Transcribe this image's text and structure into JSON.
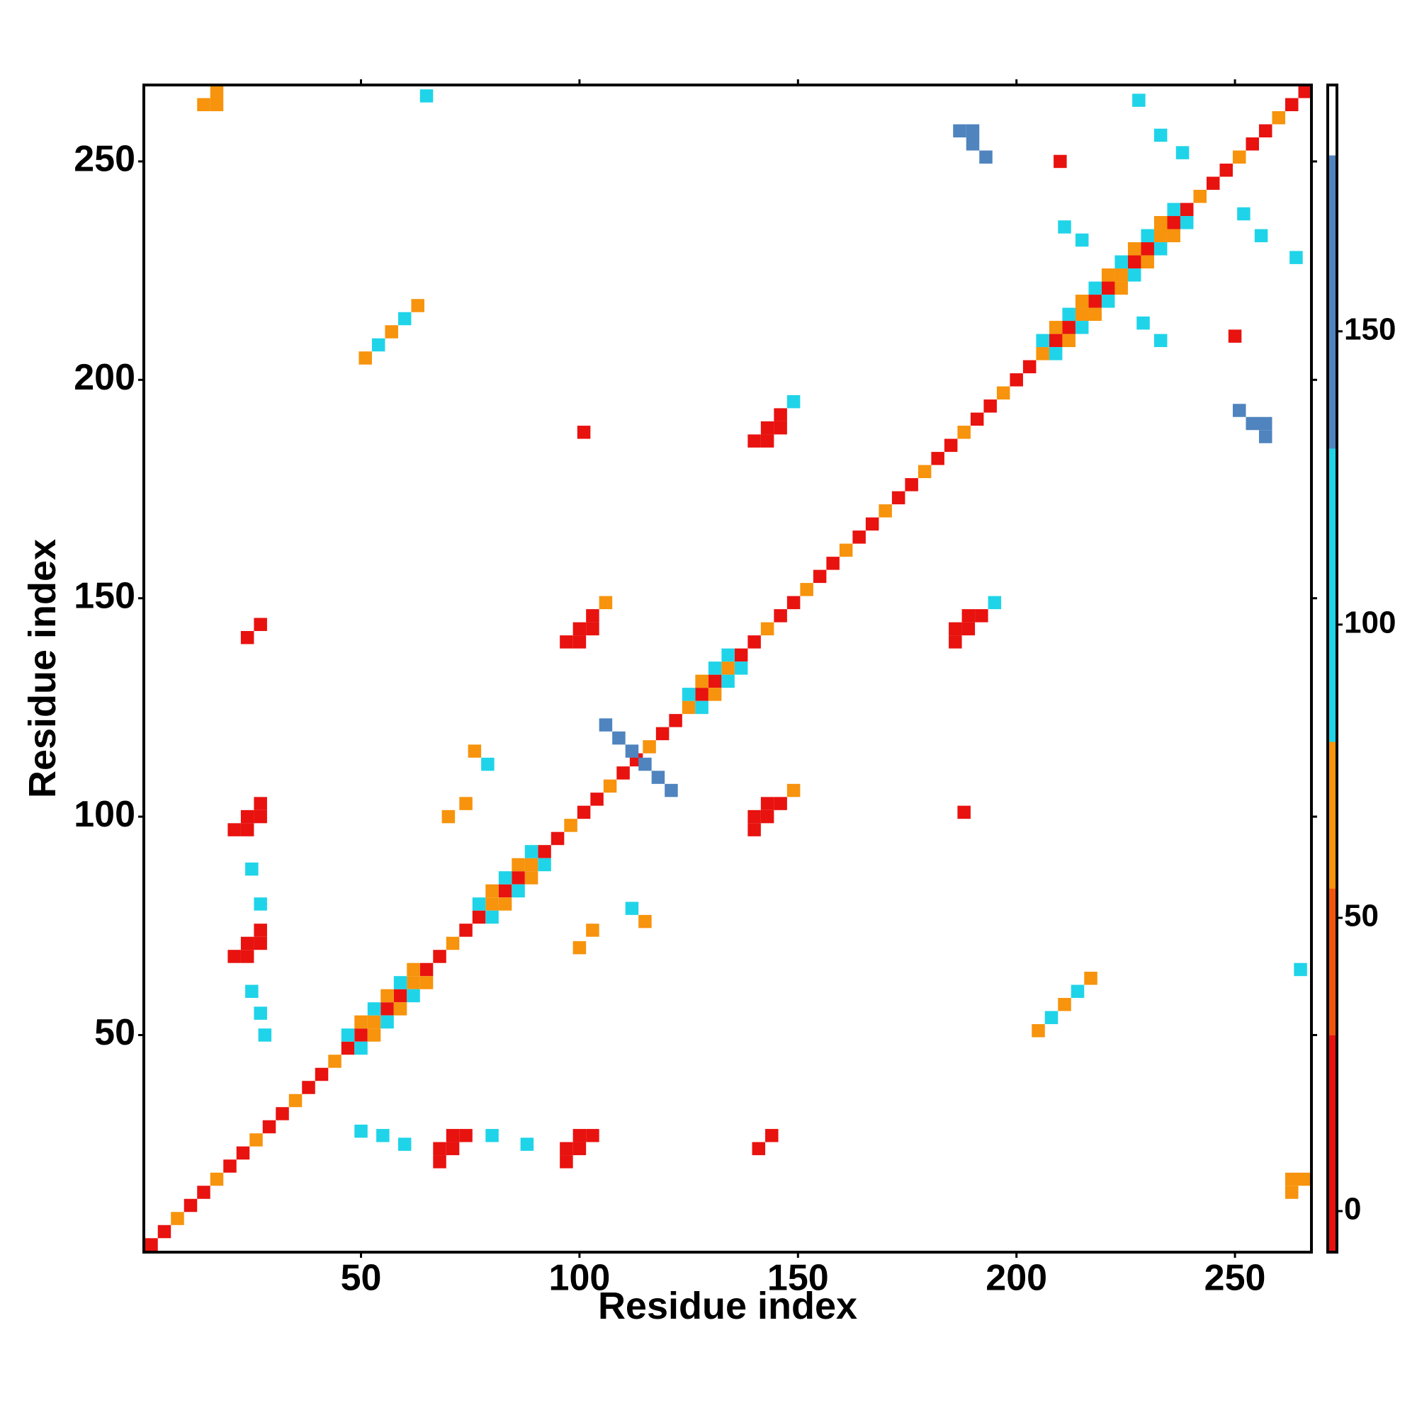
{
  "chart_data": {
    "type": "heatmap",
    "xlabel": "Residue index",
    "ylabel": "Residue index",
    "xlim": [
      0.3,
      267.5
    ],
    "ylim": [
      0.3,
      267.5
    ],
    "xticks": [
      50,
      100,
      150,
      200,
      250
    ],
    "yticks": [
      50,
      100,
      150,
      200,
      250
    ],
    "cell_size": 3,
    "colorbar": {
      "lim": [
        -7,
        192
      ],
      "ticks": [
        0,
        50,
        100,
        150
      ],
      "bounds": [
        -7,
        30,
        55,
        80,
        130,
        180,
        192
      ],
      "colors": [
        "#e8120f",
        "#f2560c",
        "#f7930c",
        "#1fd4e8",
        "#4f84be",
        "#ffffff"
      ]
    },
    "cells": [
      [
        2,
        2,
        0
      ],
      [
        5,
        5,
        0
      ],
      [
        8,
        8,
        60
      ],
      [
        11,
        11,
        0
      ],
      [
        14,
        14,
        0
      ],
      [
        17,
        17,
        60
      ],
      [
        20,
        20,
        0
      ],
      [
        23,
        23,
        0
      ],
      [
        26,
        26,
        60
      ],
      [
        29,
        29,
        0
      ],
      [
        32,
        32,
        0
      ],
      [
        35,
        35,
        60
      ],
      [
        38,
        38,
        0
      ],
      [
        41,
        41,
        0
      ],
      [
        44,
        44,
        60
      ],
      [
        47,
        47,
        0
      ],
      [
        50,
        50,
        0
      ],
      [
        53,
        53,
        60
      ],
      [
        56,
        56,
        0
      ],
      [
        59,
        59,
        0
      ],
      [
        62,
        62,
        60
      ],
      [
        65,
        65,
        0
      ],
      [
        68,
        68,
        0
      ],
      [
        71,
        71,
        60
      ],
      [
        74,
        74,
        0
      ],
      [
        77,
        77,
        0
      ],
      [
        80,
        80,
        60
      ],
      [
        83,
        83,
        0
      ],
      [
        86,
        86,
        0
      ],
      [
        89,
        89,
        60
      ],
      [
        92,
        92,
        0
      ],
      [
        95,
        95,
        0
      ],
      [
        98,
        98,
        60
      ],
      [
        101,
        101,
        0
      ],
      [
        104,
        104,
        0
      ],
      [
        107,
        107,
        60
      ],
      [
        110,
        110,
        0
      ],
      [
        113,
        113,
        0
      ],
      [
        116,
        116,
        60
      ],
      [
        119,
        119,
        0
      ],
      [
        122,
        122,
        0
      ],
      [
        125,
        125,
        60
      ],
      [
        128,
        128,
        0
      ],
      [
        131,
        131,
        0
      ],
      [
        134,
        134,
        60
      ],
      [
        137,
        137,
        0
      ],
      [
        140,
        140,
        0
      ],
      [
        143,
        143,
        60
      ],
      [
        146,
        146,
        0
      ],
      [
        149,
        149,
        0
      ],
      [
        152,
        152,
        60
      ],
      [
        155,
        155,
        0
      ],
      [
        158,
        158,
        0
      ],
      [
        161,
        161,
        60
      ],
      [
        164,
        164,
        0
      ],
      [
        167,
        167,
        0
      ],
      [
        170,
        170,
        60
      ],
      [
        173,
        173,
        0
      ],
      [
        176,
        176,
        0
      ],
      [
        179,
        179,
        60
      ],
      [
        182,
        182,
        0
      ],
      [
        185,
        185,
        0
      ],
      [
        188,
        188,
        60
      ],
      [
        191,
        191,
        0
      ],
      [
        194,
        194,
        0
      ],
      [
        197,
        197,
        60
      ],
      [
        200,
        200,
        0
      ],
      [
        203,
        203,
        0
      ],
      [
        206,
        206,
        60
      ],
      [
        209,
        209,
        0
      ],
      [
        212,
        212,
        0
      ],
      [
        215,
        215,
        60
      ],
      [
        218,
        218,
        0
      ],
      [
        221,
        221,
        0
      ],
      [
        224,
        224,
        60
      ],
      [
        227,
        227,
        0
      ],
      [
        230,
        230,
        0
      ],
      [
        233,
        233,
        60
      ],
      [
        236,
        236,
        0
      ],
      [
        239,
        239,
        0
      ],
      [
        242,
        242,
        60
      ],
      [
        245,
        245,
        0
      ],
      [
        248,
        248,
        0
      ],
      [
        251,
        251,
        60
      ],
      [
        254,
        254,
        0
      ],
      [
        257,
        257,
        0
      ],
      [
        260,
        260,
        60
      ],
      [
        263,
        263,
        0
      ],
      [
        266,
        266,
        0
      ],
      [
        47,
        50,
        100
      ],
      [
        50,
        47,
        100
      ],
      [
        50,
        53,
        60
      ],
      [
        53,
        50,
        60
      ],
      [
        53,
        56,
        100
      ],
      [
        56,
        53,
        100
      ],
      [
        56,
        59,
        60
      ],
      [
        59,
        56,
        60
      ],
      [
        59,
        62,
        100
      ],
      [
        62,
        59,
        100
      ],
      [
        62,
        65,
        60
      ],
      [
        65,
        62,
        60
      ],
      [
        77,
        80,
        100
      ],
      [
        80,
        77,
        100
      ],
      [
        80,
        83,
        60
      ],
      [
        83,
        80,
        60
      ],
      [
        83,
        86,
        100
      ],
      [
        86,
        83,
        100
      ],
      [
        86,
        89,
        60
      ],
      [
        89,
        86,
        60
      ],
      [
        89,
        92,
        100
      ],
      [
        92,
        89,
        100
      ],
      [
        125,
        128,
        100
      ],
      [
        128,
        125,
        100
      ],
      [
        128,
        131,
        60
      ],
      [
        131,
        128,
        60
      ],
      [
        131,
        134,
        100
      ],
      [
        134,
        131,
        100
      ],
      [
        134,
        137,
        100
      ],
      [
        137,
        134,
        100
      ],
      [
        206,
        209,
        100
      ],
      [
        209,
        206,
        100
      ],
      [
        209,
        212,
        60
      ],
      [
        212,
        209,
        60
      ],
      [
        212,
        215,
        100
      ],
      [
        215,
        212,
        100
      ],
      [
        215,
        218,
        60
      ],
      [
        218,
        215,
        60
      ],
      [
        218,
        221,
        100
      ],
      [
        221,
        218,
        100
      ],
      [
        221,
        224,
        60
      ],
      [
        224,
        221,
        60
      ],
      [
        224,
        227,
        100
      ],
      [
        227,
        224,
        100
      ],
      [
        227,
        230,
        60
      ],
      [
        230,
        227,
        60
      ],
      [
        230,
        233,
        100
      ],
      [
        233,
        230,
        100
      ],
      [
        233,
        236,
        60
      ],
      [
        236,
        233,
        60
      ],
      [
        236,
        239,
        100
      ],
      [
        239,
        236,
        100
      ],
      [
        109,
        118,
        150
      ],
      [
        112,
        115,
        150
      ],
      [
        115,
        112,
        150
      ],
      [
        118,
        109,
        150
      ],
      [
        106,
        121,
        150
      ],
      [
        121,
        106,
        150
      ],
      [
        14,
        263,
        60
      ],
      [
        17,
        266,
        60
      ],
      [
        17,
        263,
        60
      ],
      [
        263,
        14,
        60
      ],
      [
        266,
        17,
        60
      ],
      [
        263,
        17,
        60
      ],
      [
        21,
        97,
        10
      ],
      [
        24,
        100,
        10
      ],
      [
        27,
        103,
        10
      ],
      [
        24,
        97,
        10
      ],
      [
        27,
        100,
        10
      ],
      [
        97,
        21,
        10
      ],
      [
        100,
        24,
        10
      ],
      [
        103,
        27,
        10
      ],
      [
        97,
        24,
        10
      ],
      [
        100,
        27,
        10
      ],
      [
        21,
        68,
        10
      ],
      [
        24,
        71,
        10
      ],
      [
        27,
        74,
        10
      ],
      [
        24,
        68,
        10
      ],
      [
        27,
        71,
        10
      ],
      [
        68,
        21,
        10
      ],
      [
        71,
        24,
        10
      ],
      [
        74,
        27,
        10
      ],
      [
        68,
        24,
        10
      ],
      [
        71,
        27,
        10
      ],
      [
        97,
        140,
        10
      ],
      [
        100,
        143,
        10
      ],
      [
        103,
        146,
        10
      ],
      [
        106,
        149,
        60
      ],
      [
        100,
        140,
        10
      ],
      [
        103,
        143,
        10
      ],
      [
        140,
        97,
        10
      ],
      [
        143,
        100,
        10
      ],
      [
        146,
        103,
        10
      ],
      [
        149,
        106,
        60
      ],
      [
        140,
        100,
        10
      ],
      [
        143,
        103,
        10
      ],
      [
        140,
        186,
        10
      ],
      [
        143,
        189,
        10
      ],
      [
        146,
        192,
        10
      ],
      [
        149,
        195,
        100
      ],
      [
        143,
        186,
        10
      ],
      [
        146,
        189,
        10
      ],
      [
        186,
        140,
        10
      ],
      [
        189,
        143,
        10
      ],
      [
        192,
        146,
        10
      ],
      [
        195,
        149,
        100
      ],
      [
        186,
        143,
        10
      ],
      [
        189,
        146,
        10
      ],
      [
        187,
        257,
        160
      ],
      [
        190,
        254,
        160
      ],
      [
        193,
        251,
        160
      ],
      [
        190,
        257,
        160
      ],
      [
        257,
        187,
        160
      ],
      [
        254,
        190,
        160
      ],
      [
        251,
        193,
        160
      ],
      [
        257,
        190,
        160
      ],
      [
        51,
        205,
        60
      ],
      [
        54,
        208,
        100
      ],
      [
        57,
        211,
        60
      ],
      [
        60,
        214,
        100
      ],
      [
        63,
        217,
        60
      ],
      [
        205,
        51,
        60
      ],
      [
        208,
        54,
        100
      ],
      [
        211,
        57,
        60
      ],
      [
        214,
        60,
        100
      ],
      [
        217,
        63,
        60
      ],
      [
        28,
        50,
        100
      ],
      [
        27,
        55,
        100
      ],
      [
        25,
        60,
        100
      ],
      [
        50,
        28,
        100
      ],
      [
        55,
        27,
        100
      ],
      [
        60,
        25,
        100
      ],
      [
        27,
        80,
        100
      ],
      [
        25,
        88,
        100
      ],
      [
        80,
        27,
        100
      ],
      [
        88,
        25,
        100
      ],
      [
        211,
        235,
        100
      ],
      [
        215,
        232,
        100
      ],
      [
        229,
        213,
        100
      ],
      [
        233,
        209,
        100
      ],
      [
        228,
        264,
        100
      ],
      [
        233,
        256,
        100
      ],
      [
        238,
        252,
        100
      ],
      [
        264,
        228,
        100
      ],
      [
        256,
        233,
        100
      ],
      [
        252,
        238,
        100
      ],
      [
        76,
        115,
        60
      ],
      [
        79,
        112,
        100
      ],
      [
        115,
        76,
        60
      ],
      [
        112,
        79,
        100
      ],
      [
        24,
        141,
        10
      ],
      [
        27,
        144,
        10
      ],
      [
        141,
        24,
        10
      ],
      [
        144,
        27,
        10
      ],
      [
        188,
        101,
        10
      ],
      [
        101,
        188,
        10
      ],
      [
        210,
        250,
        10
      ],
      [
        250,
        210,
        10
      ],
      [
        265,
        65,
        100
      ],
      [
        65,
        265,
        100
      ],
      [
        70,
        100,
        60
      ],
      [
        74,
        103,
        60
      ],
      [
        100,
        70,
        60
      ],
      [
        103,
        74,
        60
      ]
    ]
  }
}
